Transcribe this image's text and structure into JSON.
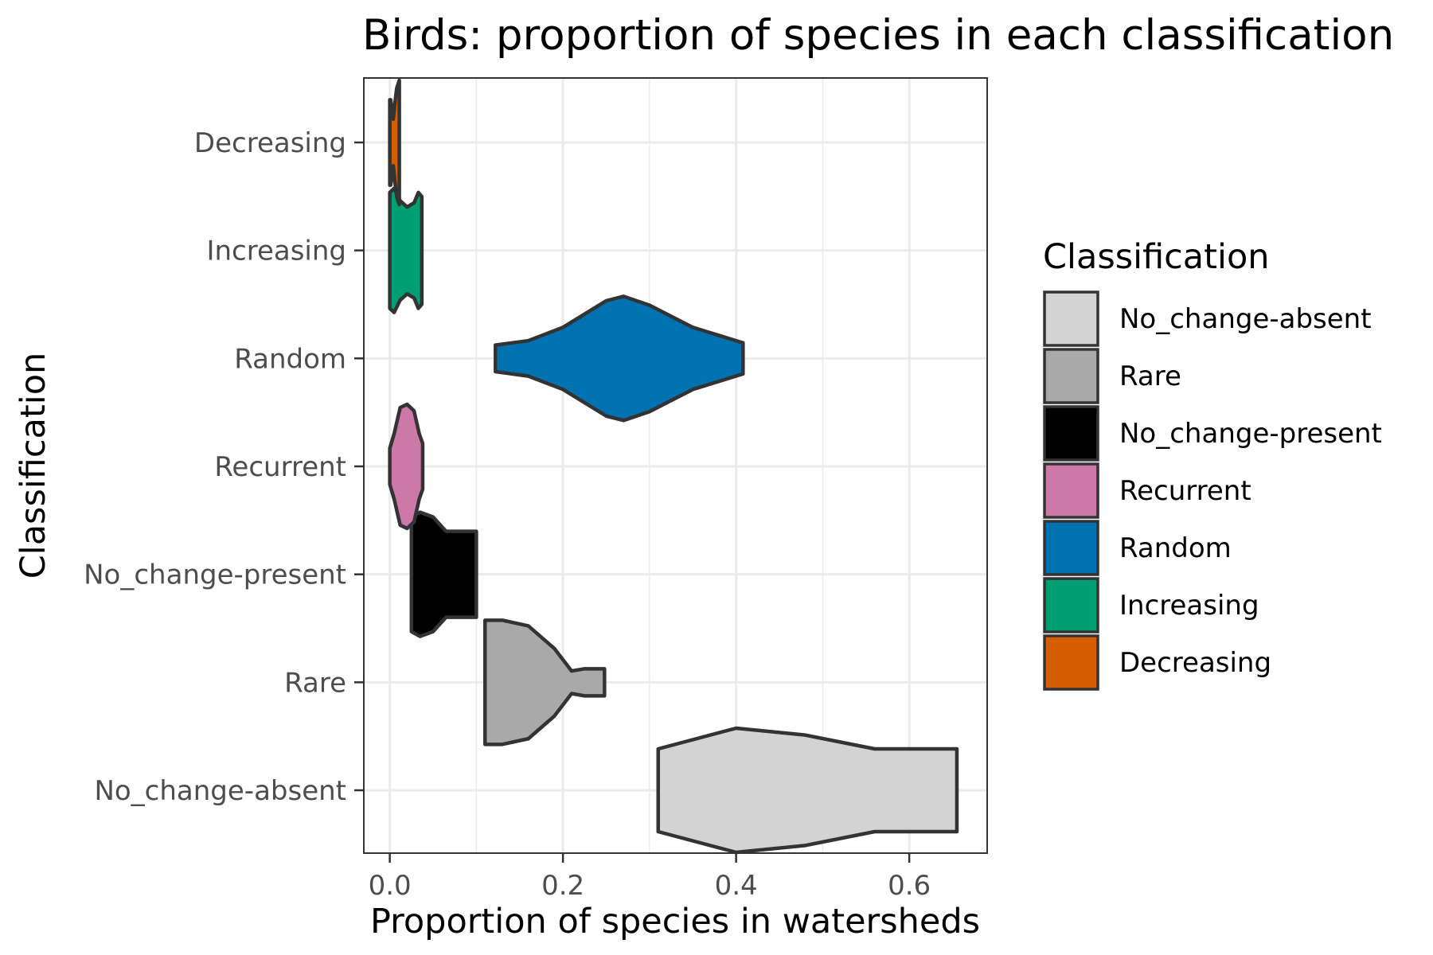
{
  "chart_data": {
    "type": "violin",
    "orientation": "horizontal",
    "title": "Birds: proportion of species in each classification",
    "xlabel": "Proportion of species in watersheds",
    "ylabel": "Classification",
    "xlim": [
      -0.03,
      0.69
    ],
    "x_ticks": [
      "0.0",
      "0.2",
      "0.4",
      "0.6"
    ],
    "x_tick_values": [
      0.0,
      0.2,
      0.4,
      0.6
    ],
    "categories": [
      "No_change-absent",
      "Rare",
      "No_change-present",
      "Recurrent",
      "Random",
      "Increasing",
      "Decreasing"
    ],
    "grid": true,
    "legend": {
      "title": "Classification",
      "placement": "right",
      "entries": [
        "No_change-absent",
        "Rare",
        "No_change-present",
        "Recurrent",
        "Random",
        "Increasing",
        "Decreasing"
      ]
    },
    "series": [
      {
        "name": "No_change-absent",
        "color": "#D3D3D3",
        "min": 0.31,
        "max": 0.655,
        "profile": [
          [
            0.31,
            0.03
          ],
          [
            0.4,
            0.045
          ],
          [
            0.48,
            0.04
          ],
          [
            0.56,
            0.03
          ],
          [
            0.655,
            0.03
          ]
        ]
      },
      {
        "name": "Rare",
        "color": "#A9A9A9",
        "min": 0.11,
        "max": 0.248,
        "profile": [
          [
            0.11,
            0.55
          ],
          [
            0.13,
            0.55
          ],
          [
            0.16,
            0.5
          ],
          [
            0.19,
            0.3
          ],
          [
            0.21,
            0.1
          ],
          [
            0.225,
            0.12
          ],
          [
            0.248,
            0.12
          ]
        ]
      },
      {
        "name": "No_change-present",
        "color": "#000000",
        "min": 0.025,
        "max": 0.1,
        "profile": [
          [
            0.025,
            0.6
          ],
          [
            0.035,
            0.65
          ],
          [
            0.05,
            0.6
          ],
          [
            0.065,
            0.45
          ],
          [
            0.08,
            0.45
          ],
          [
            0.1,
            0.45
          ]
        ]
      },
      {
        "name": "Recurrent",
        "color": "#CC79A7",
        "min": 0.0,
        "max": 0.038,
        "profile": [
          [
            0.0,
            0.55
          ],
          [
            0.005,
            1.0
          ],
          [
            0.012,
            1.8
          ],
          [
            0.02,
            1.9
          ],
          [
            0.028,
            1.7
          ],
          [
            0.034,
            1.0
          ],
          [
            0.038,
            0.7
          ]
        ]
      },
      {
        "name": "Random",
        "color": "#0072B2",
        "min": 0.122,
        "max": 0.408,
        "profile": [
          [
            0.122,
            0.03
          ],
          [
            0.16,
            0.04
          ],
          [
            0.2,
            0.07
          ],
          [
            0.25,
            0.13
          ],
          [
            0.27,
            0.14
          ],
          [
            0.3,
            0.12
          ],
          [
            0.35,
            0.07
          ],
          [
            0.408,
            0.035
          ]
        ]
      },
      {
        "name": "Increasing",
        "color": "#009E73",
        "min": 0.0,
        "max": 0.037,
        "profile": [
          [
            0.0,
            1.4
          ],
          [
            0.005,
            1.5
          ],
          [
            0.012,
            1.2
          ],
          [
            0.02,
            1.05
          ],
          [
            0.028,
            1.15
          ],
          [
            0.033,
            1.4
          ],
          [
            0.037,
            1.3
          ]
        ]
      },
      {
        "name": "Decreasing",
        "color": "#D55E00",
        "min": 0.0,
        "max": 0.011,
        "profile": [
          [
            0.0,
            5.5
          ],
          [
            0.001,
            5.5
          ],
          [
            0.004,
            3.0
          ],
          [
            0.006,
            5.2
          ],
          [
            0.008,
            7.0
          ],
          [
            0.011,
            8.0
          ]
        ]
      }
    ]
  }
}
